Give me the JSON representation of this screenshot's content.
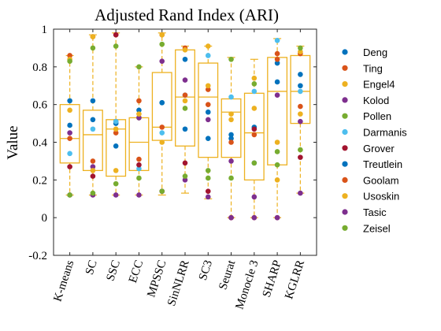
{
  "chart_data": {
    "type": "box",
    "title": "Adjusted Rand Index (ARI)",
    "ylabel": "Value",
    "xlabel": "",
    "ylim": [
      -0.2,
      1.0
    ],
    "yticks": [
      -0.2,
      0,
      0.2,
      0.4,
      0.6,
      0.8,
      1
    ],
    "ytick_labels": [
      "-0.2",
      "0",
      "0.2",
      "0.4",
      "0.6",
      "0.8",
      "1"
    ],
    "grid": false,
    "legend_position": "right",
    "box_color": "#edb120",
    "methods": [
      "K-means",
      "SC",
      "SSC",
      "ECC",
      "MPSSC",
      "SinNLRR",
      "SC3",
      "Seurat",
      "Monocle 3",
      "SHARP",
      "KGLRR"
    ],
    "boxes": [
      {
        "q1": 0.29,
        "median": 0.42,
        "q3": 0.6,
        "whisker_low": 0.12,
        "whisker_high": 0.86
      },
      {
        "q1": 0.25,
        "median": 0.44,
        "q3": 0.57,
        "whisker_low": 0.12,
        "whisker_high": 0.97
      },
      {
        "q1": 0.22,
        "median": 0.47,
        "q3": 0.52,
        "whisker_low": 0.12,
        "whisker_high": 0.98
      },
      {
        "q1": 0.25,
        "median": 0.4,
        "q3": 0.53,
        "whisker_low": 0.12,
        "whisker_high": 0.8
      },
      {
        "q1": 0.41,
        "median": 0.48,
        "q3": 0.77,
        "whisker_low": 0.12,
        "whisker_high": 0.98
      },
      {
        "q1": 0.38,
        "median": 0.64,
        "q3": 0.89,
        "whisker_low": 0.13,
        "whisker_high": 0.91
      },
      {
        "q1": 0.32,
        "median": 0.64,
        "q3": 0.82,
        "whisker_low": 0.1,
        "whisker_high": 0.91
      },
      {
        "q1": 0.32,
        "median": 0.56,
        "q3": 0.63,
        "whisker_low": 0.0,
        "whisker_high": 0.85
      },
      {
        "q1": 0.2,
        "median": 0.45,
        "q3": 0.66,
        "whisker_low": 0.0,
        "whisker_high": 0.84
      },
      {
        "q1": 0.28,
        "median": 0.67,
        "q3": 0.85,
        "whisker_low": 0.0,
        "whisker_high": 0.95
      },
      {
        "q1": 0.5,
        "median": 0.67,
        "q3": 0.86,
        "whisker_low": 0.13,
        "whisker_high": 0.91
      }
    ],
    "series": [
      {
        "name": "Deng",
        "color": "#0072bd",
        "values": [
          0.49,
          0.52,
          0.5,
          0.53,
          0.61,
          0.84,
          0.42,
          0.42,
          0.48,
          0.72,
          0.76
        ]
      },
      {
        "name": "Ting",
        "color": "#d95319",
        "values": [
          0.86,
          0.96,
          0.97,
          0.62,
          0.97,
          0.9,
          0.6,
          0.0,
          0.0,
          0.87,
          0.87
        ]
      },
      {
        "name": "Engel4",
        "color": "#edb120",
        "values": [
          0.84,
          0.96,
          0.25,
          0.53,
          0.4,
          0.89,
          0.91,
          0.55,
          0.74,
          0.2,
          0.88
        ]
      },
      {
        "name": "Kolod",
        "color": "#7e2f8e",
        "values": [
          0.45,
          0.27,
          0.51,
          0.53,
          0.83,
          0.73,
          0.52,
          0.3,
          0.11,
          0.65,
          0.51
        ]
      },
      {
        "name": "Pollen",
        "color": "#77ac30",
        "values": [
          0.83,
          0.9,
          0.91,
          0.8,
          0.92,
          0.58,
          0.25,
          0.84,
          0.71,
          0.35,
          0.9
        ]
      },
      {
        "name": "Darmanis",
        "color": "#4dbeee",
        "values": [
          0.34,
          0.47,
          0.51,
          0.26,
          0.45,
          0.65,
          0.86,
          0.64,
          0.67,
          0.94,
          0.67
        ]
      },
      {
        "name": "Grover",
        "color": "#a2142f",
        "values": [
          0.27,
          0.22,
          0.97,
          0.28,
          0.14,
          0.29,
          0.14,
          0.0,
          0.47,
          0.0,
          0.32
        ]
      },
      {
        "name": "Treutlein",
        "color": "#0072bd",
        "values": [
          0.62,
          0.62,
          0.38,
          0.57,
          0.61,
          0.47,
          0.56,
          0.44,
          0.29,
          0.82,
          0.7
        ]
      },
      {
        "name": "Goolam",
        "color": "#d95319",
        "values": [
          0.42,
          0.3,
          0.45,
          0.31,
          0.48,
          0.65,
          0.68,
          0.4,
          0.44,
          0.84,
          0.59
        ]
      },
      {
        "name": "Usoskin",
        "color": "#edb120",
        "values": [
          0.57,
          0.25,
          0.47,
          0.55,
          0.97,
          0.62,
          0.7,
          0.52,
          0.58,
          0.4,
          0.55
        ]
      },
      {
        "name": "Tasic",
        "color": "#7e2f8e",
        "values": [
          0.12,
          0.12,
          0.12,
          0.12,
          0.14,
          0.2,
          0.11,
          0.0,
          0.0,
          0.0,
          0.13
        ]
      },
      {
        "name": "Zeisel",
        "color": "#77ac30",
        "values": [
          0.12,
          0.13,
          0.18,
          0.21,
          0.14,
          0.22,
          0.21,
          0.21,
          0.29,
          0.28,
          0.36
        ]
      }
    ]
  }
}
